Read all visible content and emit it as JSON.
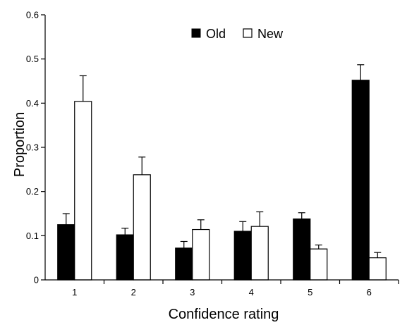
{
  "chart_data": {
    "type": "bar",
    "title": "",
    "xlabel": "Confidence rating",
    "ylabel": "Proportion",
    "categories": [
      "1",
      "2",
      "3",
      "4",
      "5",
      "6"
    ],
    "ylim": [
      0,
      0.6
    ],
    "yticks": [
      "0",
      "0.1",
      "0.2",
      "0.3",
      "0.4",
      "0.5",
      "0.6"
    ],
    "grid": false,
    "legend_position": "top-center",
    "series": [
      {
        "name": "Old",
        "color": "#000000",
        "values": [
          0.125,
          0.102,
          0.072,
          0.11,
          0.138,
          0.452
        ],
        "errors": [
          0.025,
          0.015,
          0.015,
          0.022,
          0.014,
          0.035
        ]
      },
      {
        "name": "New",
        "color": "#ffffff",
        "values": [
          0.404,
          0.238,
          0.114,
          0.121,
          0.07,
          0.05
        ],
        "errors": [
          0.058,
          0.04,
          0.022,
          0.033,
          0.009,
          0.012
        ]
      }
    ]
  }
}
